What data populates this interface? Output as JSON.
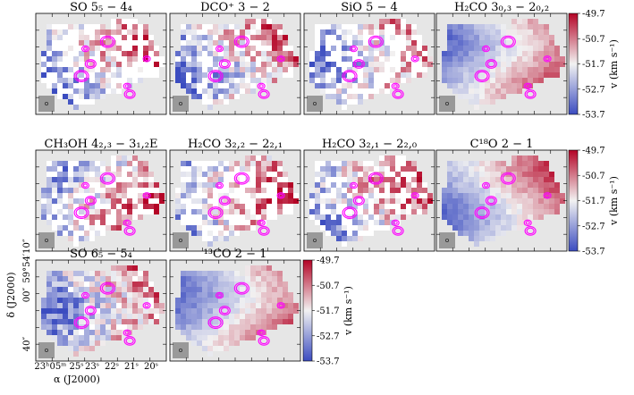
{
  "chart_data": {
    "type": "heatmap",
    "description_kind": "velocity (moment-1) maps",
    "panels": [
      {
        "title": "SO 5₅ − 4₄",
        "row": 0,
        "col": 0,
        "coverage": 0.55
      },
      {
        "title": "DCO⁺ 3 − 2",
        "row": 0,
        "col": 1,
        "coverage": 0.75
      },
      {
        "title": "SiO 5 − 4",
        "row": 0,
        "col": 2,
        "coverage": 0.55
      },
      {
        "title": "H₂CO 3₀,₃ − 2₀,₂",
        "row": 0,
        "col": 3,
        "coverage": 1.0
      },
      {
        "title": "CH₃OH 4₂,₃ − 3₁,₂E",
        "row": 1,
        "col": 0,
        "coverage": 0.65
      },
      {
        "title": "H₂CO 3₂,₂ − 2₂,₁",
        "row": 1,
        "col": 1,
        "coverage": 0.6
      },
      {
        "title": "H₂CO 3₂,₁ − 2₂,₀",
        "row": 1,
        "col": 2,
        "coverage": 0.6
      },
      {
        "title": "C¹⁸O 2 − 1",
        "row": 1,
        "col": 3,
        "coverage": 1.0
      },
      {
        "title": "SO 6₅ − 5₄",
        "row": 2,
        "col": 0,
        "coverage": 0.95
      },
      {
        "title": "¹³CO 2 − 1",
        "row": 2,
        "col": 1,
        "coverage": 1.0
      }
    ],
    "colorbar": {
      "label": "v (km s⁻¹)",
      "ticks": [
        "-49.7",
        "-50.7",
        "-51.7",
        "-52.7",
        "-53.7"
      ],
      "vmin": -53.7,
      "vmax": -49.7,
      "colormap": "blue-white-red"
    },
    "xaxis": {
      "label": "α (J2000)",
      "ticks": [
        "23ʰ05ᵐ 25ˢ",
        "23ˢ",
        "22ˢ",
        "21ˢ",
        "20ˢ"
      ]
    },
    "yaxis": {
      "label": "δ (J2000)",
      "ticks": [
        "59°54′10″",
        "00″",
        "40″"
      ]
    },
    "overlay": "magenta contours (continuum)",
    "mask_color": "#e6e6e6"
  },
  "colors": {
    "low": "#3b4cc0",
    "mid": "#f2f2f2",
    "high": "#b40426",
    "contour": "#ff00ff",
    "beam": "#999999"
  }
}
